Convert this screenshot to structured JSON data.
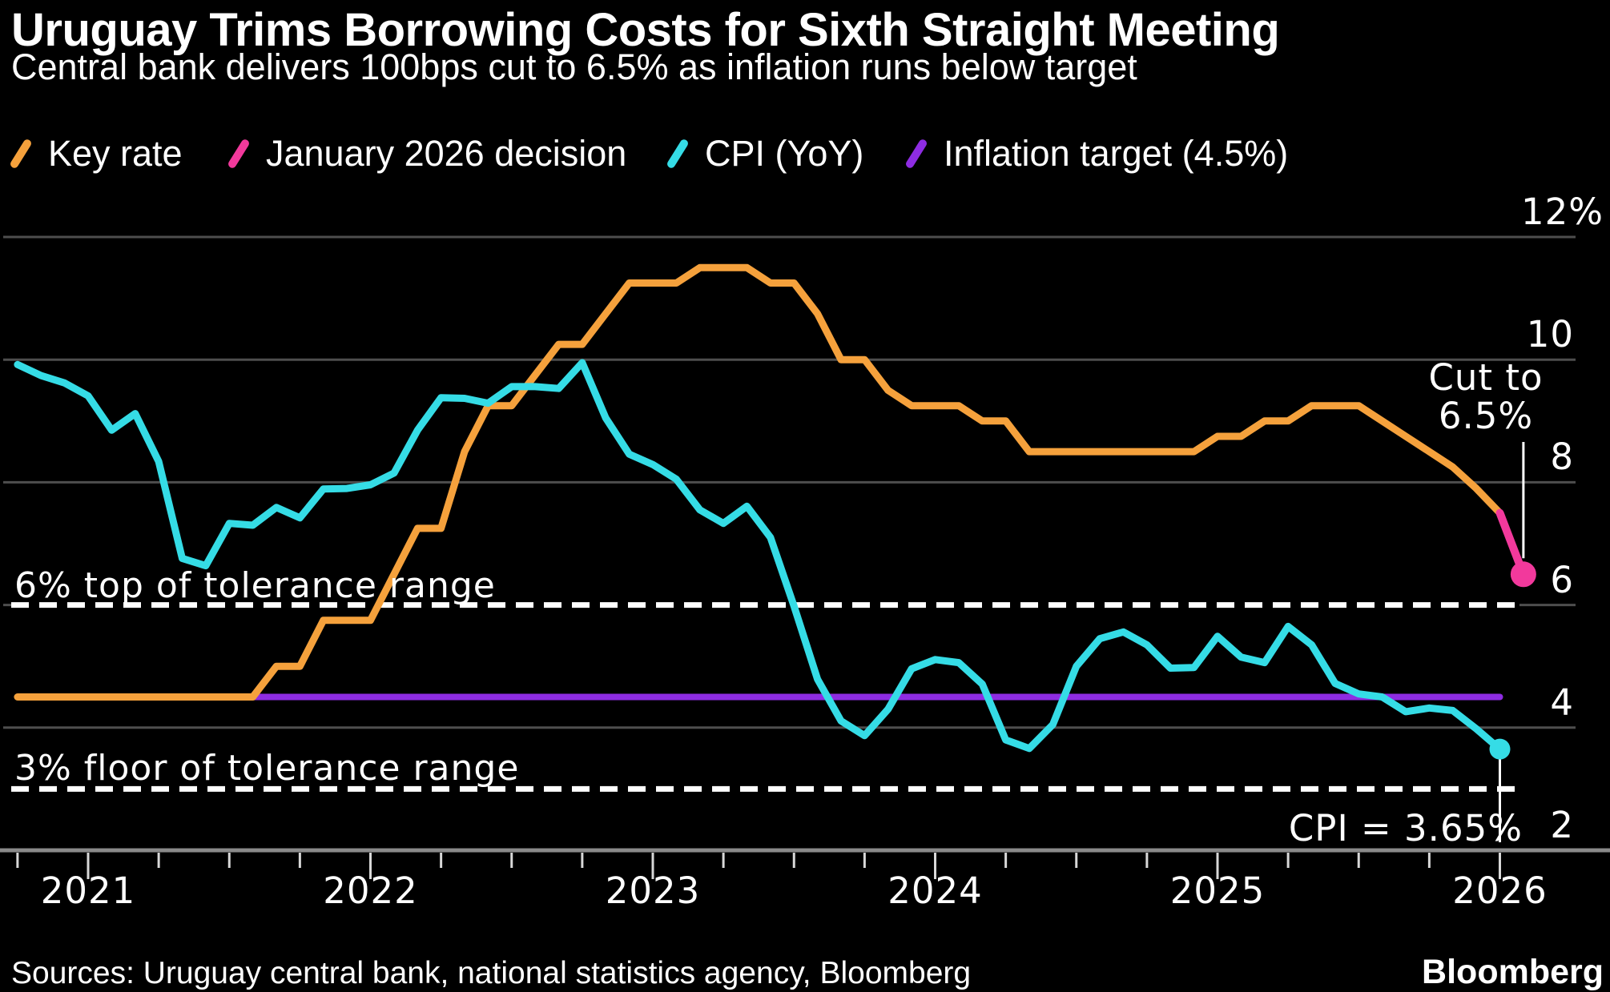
{
  "header": {
    "title": "Uruguay Trims Borrowing Costs for Sixth Straight Meeting",
    "subtitle": "Central bank delivers 100bps cut to 6.5% as inflation runs below target"
  },
  "legend": {
    "items": [
      {
        "label": "Key rate",
        "color": "#F5A13C"
      },
      {
        "label": "January 2026 decision",
        "color": "#F2399C"
      },
      {
        "label": "CPI (YoY)",
        "color": "#35DCE6"
      },
      {
        "label": "Inflation target (4.5%)",
        "color": "#8E2CE2"
      }
    ]
  },
  "chart_data": {
    "type": "line",
    "title": "Uruguay key policy rate vs CPI",
    "unit": "%",
    "legend_position": "top",
    "grid": "horizontal",
    "ylim": [
      2,
      12
    ],
    "xlim": [
      2020.75,
      2026.17
    ],
    "x_axis": {
      "ticks": [
        2021,
        2022,
        2023,
        2024,
        2025,
        2026
      ],
      "minor_tick_step_years": 0.25
    },
    "y_axis": {
      "ticks": [
        {
          "value": 12,
          "label": "12%"
        },
        {
          "value": 10,
          "label": "10"
        },
        {
          "value": 8,
          "label": "8"
        },
        {
          "value": 6,
          "label": "6"
        },
        {
          "value": 4,
          "label": "4"
        },
        {
          "value": 2,
          "label": "2"
        }
      ]
    },
    "series": [
      {
        "name": "Key rate",
        "color": "#F5A13C",
        "freq": "monthly",
        "start": "2020-09",
        "values": [
          4.5,
          4.5,
          4.5,
          4.5,
          4.5,
          4.5,
          4.5,
          4.5,
          4.5,
          4.5,
          4.5,
          5.0,
          5.0,
          5.75,
          5.75,
          5.75,
          6.5,
          7.25,
          7.25,
          8.5,
          9.25,
          9.25,
          9.75,
          10.25,
          10.25,
          10.75,
          11.25,
          11.25,
          11.25,
          11.5,
          11.5,
          11.5,
          11.25,
          11.25,
          10.75,
          10.0,
          10.0,
          9.5,
          9.25,
          9.25,
          9.25,
          9.0,
          9.0,
          8.5,
          8.5,
          8.5,
          8.5,
          8.5,
          8.5,
          8.5,
          8.5,
          8.75,
          8.75,
          9.0,
          9.0,
          9.25,
          9.25,
          9.25,
          9.0,
          8.75,
          8.5,
          8.25,
          7.9,
          7.5
        ]
      },
      {
        "name": "January 2026 decision",
        "color": "#F2399C",
        "points": [
          [
            "2025-12",
            7.5
          ],
          [
            "2026-01",
            6.5
          ]
        ],
        "end_marker": {
          "month": "2026-01",
          "value": 6.5
        }
      },
      {
        "name": "CPI (YoY)",
        "color": "#35DCE6",
        "freq": "monthly",
        "start": "2020-09",
        "values": [
          9.92,
          9.74,
          9.62,
          9.41,
          8.85,
          9.12,
          8.34,
          6.76,
          6.64,
          7.33,
          7.3,
          7.59,
          7.42,
          7.89,
          7.9,
          7.96,
          8.15,
          8.85,
          9.38,
          9.37,
          9.29,
          9.56,
          9.56,
          9.53,
          9.95,
          9.05,
          8.46,
          8.29,
          8.05,
          7.55,
          7.33,
          7.61,
          7.1,
          5.98,
          4.79,
          4.11,
          3.87,
          4.3,
          4.96,
          5.11,
          5.06,
          4.71,
          3.8,
          3.66,
          4.05,
          5.0,
          5.45,
          5.56,
          5.35,
          4.97,
          4.98,
          5.49,
          5.15,
          5.06,
          5.65,
          5.35,
          4.72,
          4.55,
          4.5,
          4.26,
          4.32,
          4.28,
          3.98,
          3.65
        ],
        "end_marker": {
          "month": "2025-12",
          "value": 3.65
        }
      },
      {
        "name": "Inflation target (4.5%)",
        "color": "#8E2CE2",
        "points": [
          [
            "2020-09",
            4.5
          ],
          [
            "2025-12",
            4.5
          ]
        ]
      }
    ],
    "reference_lines": [
      {
        "value": 6,
        "label": "6% top of tolerance range",
        "style": "dashed",
        "color": "#FFFFFF"
      },
      {
        "value": 3,
        "label": "3% floor of tolerance range",
        "style": "dashed",
        "color": "#FFFFFF"
      }
    ],
    "annotations": {
      "cut_to": {
        "line1": "Cut to",
        "line2": "6.5%",
        "points_at": "January 2026 decision"
      },
      "cpi": {
        "text": "CPI = 3.65%",
        "points_at": "CPI (YoY) last value"
      }
    }
  },
  "footer": {
    "source": "Sources: Uruguay central bank, national statistics agency, Bloomberg",
    "logo": "Bloomberg"
  }
}
